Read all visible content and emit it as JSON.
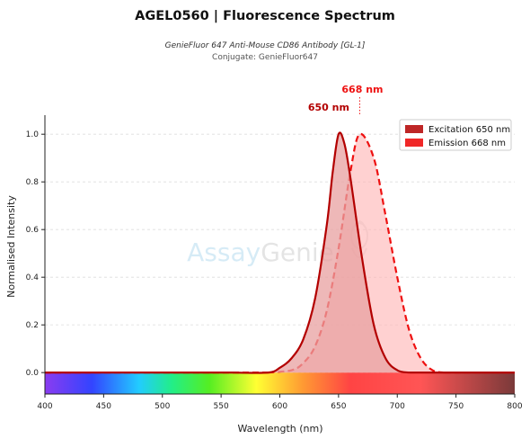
{
  "title": "AGEL0560  |  Fluorescence Spectrum",
  "subtitle": "GenieFluor 647 Anti-Mouse CD86 Antibody [GL-1]",
  "subtitle2": "Conjugate: GenieFluor647",
  "watermark": {
    "part1": "Assay",
    "part2": "Genie"
  },
  "chart_data": {
    "type": "area",
    "xlabel": "Wavelength (nm)",
    "ylabel": "Normalised Intensity",
    "xlim": [
      400,
      800
    ],
    "ylim": [
      -0.09,
      1.08
    ],
    "xticks": [
      400,
      450,
      500,
      550,
      600,
      650,
      700,
      750,
      800
    ],
    "yticks": [
      0.0,
      0.2,
      0.4,
      0.6,
      0.8,
      1.0
    ],
    "grid": "horizontal dashed",
    "legend_position": "top-right",
    "series": [
      {
        "name": "Excitation  650 nm",
        "peak": 650,
        "peak_label": "650 nm",
        "x": [
          560,
          590,
          600,
          610,
          620,
          630,
          640,
          645,
          650,
          655,
          660,
          670,
          680,
          690,
          700,
          710
        ],
        "y": [
          0.0,
          0.0,
          0.02,
          0.06,
          0.14,
          0.31,
          0.62,
          0.84,
          1.0,
          0.96,
          0.82,
          0.48,
          0.2,
          0.06,
          0.01,
          0.0
        ],
        "color": "#b30000",
        "fill": "#e8a0a0",
        "dash": false
      },
      {
        "name": "Emission  668 nm",
        "peak": 668,
        "peak_label": "668 nm",
        "x": [
          590,
          610,
          620,
          630,
          640,
          650,
          660,
          668,
          680,
          690,
          700,
          710,
          720,
          730,
          740
        ],
        "y": [
          0.0,
          0.01,
          0.04,
          0.11,
          0.26,
          0.52,
          0.84,
          1.0,
          0.9,
          0.66,
          0.4,
          0.18,
          0.06,
          0.01,
          0.0
        ],
        "color": "#ee1111",
        "fill": "#ffb3b3",
        "dash": true
      }
    ]
  }
}
